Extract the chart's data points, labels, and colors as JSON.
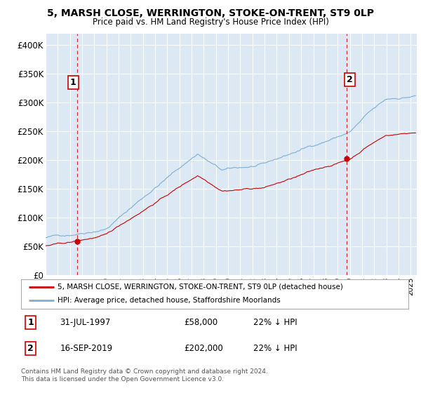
{
  "title_line1": "5, MARSH CLOSE, WERRINGTON, STOKE-ON-TRENT, ST9 0LP",
  "title_line2": "Price paid vs. HM Land Registry's House Price Index (HPI)",
  "ylabel_ticks": [
    "£0",
    "£50K",
    "£100K",
    "£150K",
    "£200K",
    "£250K",
    "£300K",
    "£350K",
    "£400K"
  ],
  "ytick_values": [
    0,
    50000,
    100000,
    150000,
    200000,
    250000,
    300000,
    350000,
    400000
  ],
  "ylim": [
    0,
    420000
  ],
  "xlim_start": 1995.0,
  "xlim_end": 2025.5,
  "xtick_years": [
    1995,
    1996,
    1997,
    1998,
    1999,
    2000,
    2001,
    2002,
    2003,
    2004,
    2005,
    2006,
    2007,
    2008,
    2009,
    2010,
    2011,
    2012,
    2013,
    2014,
    2015,
    2016,
    2017,
    2018,
    2019,
    2020,
    2021,
    2022,
    2023,
    2024,
    2025
  ],
  "sale1_x": 1997.58,
  "sale1_y": 58000,
  "sale1_label": "1",
  "sale1_date": "31-JUL-1997",
  "sale1_price": "£58,000",
  "sale1_hpi": "22% ↓ HPI",
  "sale2_x": 2019.71,
  "sale2_y": 202000,
  "sale2_label": "2",
  "sale2_date": "16-SEP-2019",
  "sale2_price": "£202,000",
  "sale2_hpi": "22% ↓ HPI",
  "hpi_color": "#7bafd4",
  "sale_color": "#cc0000",
  "dashed_color": "#cc0000",
  "legend_label1": "5, MARSH CLOSE, WERRINGTON, STOKE-ON-TRENT, ST9 0LP (detached house)",
  "legend_label2": "HPI: Average price, detached house, Staffordshire Moorlands",
  "footer": "Contains HM Land Registry data © Crown copyright and database right 2024.\nThis data is licensed under the Open Government Licence v3.0.",
  "plot_bg_color": "#dce9f5",
  "background_color": "#ffffff",
  "grid_color": "#ffffff"
}
